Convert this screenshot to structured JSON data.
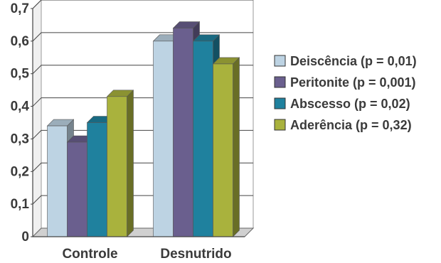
{
  "chart_data": {
    "type": "bar",
    "style": "3d-clustered",
    "categories": [
      "Controle",
      "Desnutrido"
    ],
    "series": [
      {
        "name": "Deiscência (p = 0,01)",
        "values": [
          0.34,
          0.6
        ],
        "color": "#bdd3e3"
      },
      {
        "name": "Peritonite (p = 0,001)",
        "values": [
          0.29,
          0.64
        ],
        "color": "#6a5f8e"
      },
      {
        "name": "Abscesso (p = 0,02)",
        "values": [
          0.35,
          0.6
        ],
        "color": "#1f819e"
      },
      {
        "name": "Aderência (p = 0,32)",
        "values": [
          0.43,
          0.53
        ],
        "color": "#a9b23d"
      }
    ],
    "yticks": [
      "0",
      "0,1",
      "0,2",
      "0,3",
      "0,4",
      "0,5",
      "0,6",
      "0,7"
    ],
    "ylim": [
      0,
      0.7
    ],
    "grid": true,
    "legend_position": "right",
    "title": "",
    "xlabel": "",
    "ylabel": ""
  }
}
